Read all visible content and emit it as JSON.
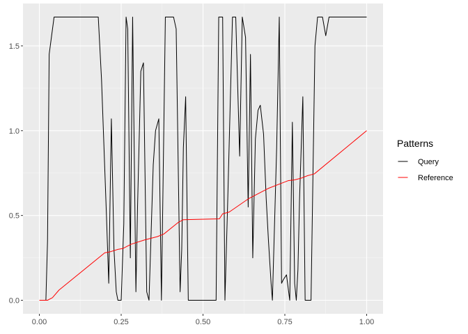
{
  "chart_data": {
    "type": "line",
    "title": "",
    "xlabel": "",
    "ylabel": "",
    "xlim": [
      -0.05,
      1.05
    ],
    "ylim": [
      -0.08,
      1.75
    ],
    "x_ticks": [
      0.0,
      0.25,
      0.5,
      0.75,
      1.0
    ],
    "x_tick_labels": [
      "0.00",
      "0.25",
      "0.50",
      "0.75",
      "1.00"
    ],
    "y_ticks": [
      0.0,
      0.5,
      1.0,
      1.5
    ],
    "y_tick_labels": [
      "0.0",
      "0.5",
      "1.0",
      "1.5"
    ],
    "grid": true,
    "background": "#ebebeb",
    "legend": {
      "title": "Patterns",
      "position": "right"
    },
    "series": [
      {
        "name": "Query",
        "color": "#000000",
        "points": [
          [
            0.0,
            0.0
          ],
          [
            0.02,
            0.0
          ],
          [
            0.025,
            0.35
          ],
          [
            0.03,
            1.45
          ],
          [
            0.045,
            1.67
          ],
          [
            0.18,
            1.67
          ],
          [
            0.19,
            1.3
          ],
          [
            0.205,
            0.5
          ],
          [
            0.212,
            0.1
          ],
          [
            0.22,
            1.07
          ],
          [
            0.228,
            0.3
          ],
          [
            0.235,
            0.05
          ],
          [
            0.24,
            0.0
          ],
          [
            0.25,
            0.0
          ],
          [
            0.258,
            0.45
          ],
          [
            0.265,
            1.67
          ],
          [
            0.27,
            1.6
          ],
          [
            0.278,
            0.25
          ],
          [
            0.285,
            1.67
          ],
          [
            0.295,
            0.05
          ],
          [
            0.3,
            0.55
          ],
          [
            0.31,
            1.35
          ],
          [
            0.318,
            1.4
          ],
          [
            0.328,
            0.05
          ],
          [
            0.335,
            0.0
          ],
          [
            0.348,
            0.8
          ],
          [
            0.355,
            1.0
          ],
          [
            0.365,
            1.07
          ],
          [
            0.373,
            0.0
          ],
          [
            0.385,
            1.67
          ],
          [
            0.41,
            1.67
          ],
          [
            0.418,
            1.6
          ],
          [
            0.43,
            0.05
          ],
          [
            0.435,
            0.3
          ],
          [
            0.44,
            0.9
          ],
          [
            0.447,
            1.2
          ],
          [
            0.455,
            0.0
          ],
          [
            0.54,
            0.0
          ],
          [
            0.548,
            1.67
          ],
          [
            0.56,
            1.67
          ],
          [
            0.567,
            0.0
          ],
          [
            0.575,
            0.55
          ],
          [
            0.59,
            1.67
          ],
          [
            0.6,
            1.67
          ],
          [
            0.612,
            0.85
          ],
          [
            0.62,
            1.67
          ],
          [
            0.63,
            1.55
          ],
          [
            0.638,
            0.55
          ],
          [
            0.645,
            1.45
          ],
          [
            0.652,
            0.25
          ],
          [
            0.66,
            0.95
          ],
          [
            0.668,
            1.12
          ],
          [
            0.675,
            1.15
          ],
          [
            0.685,
            0.98
          ],
          [
            0.693,
            0.6
          ],
          [
            0.7,
            0.35
          ],
          [
            0.708,
            0.1
          ],
          [
            0.712,
            0.0
          ],
          [
            0.72,
            0.55
          ],
          [
            0.725,
            0.9
          ],
          [
            0.733,
            1.67
          ],
          [
            0.74,
            0.1
          ],
          [
            0.745,
            0.12
          ],
          [
            0.755,
            0.15
          ],
          [
            0.765,
            0.0
          ],
          [
            0.773,
            1.05
          ],
          [
            0.78,
            0.1
          ],
          [
            0.785,
            0.0
          ],
          [
            0.79,
            0.18
          ],
          [
            0.795,
            0.6
          ],
          [
            0.805,
            1.2
          ],
          [
            0.812,
            0.0
          ],
          [
            0.83,
            0.0
          ],
          [
            0.842,
            1.5
          ],
          [
            0.85,
            1.67
          ],
          [
            0.865,
            1.67
          ],
          [
            0.875,
            1.56
          ],
          [
            0.885,
            1.67
          ],
          [
            1.0,
            1.67
          ]
        ]
      },
      {
        "name": "Reference",
        "color": "#ff0000",
        "points": [
          [
            0.0,
            0.0
          ],
          [
            0.025,
            0.0
          ],
          [
            0.04,
            0.015
          ],
          [
            0.06,
            0.06
          ],
          [
            0.2,
            0.28
          ],
          [
            0.215,
            0.285
          ],
          [
            0.24,
            0.3
          ],
          [
            0.255,
            0.305
          ],
          [
            0.28,
            0.33
          ],
          [
            0.32,
            0.355
          ],
          [
            0.36,
            0.375
          ],
          [
            0.38,
            0.39
          ],
          [
            0.425,
            0.46
          ],
          [
            0.44,
            0.475
          ],
          [
            0.55,
            0.48
          ],
          [
            0.56,
            0.51
          ],
          [
            0.58,
            0.52
          ],
          [
            0.61,
            0.56
          ],
          [
            0.64,
            0.6
          ],
          [
            0.7,
            0.66
          ],
          [
            0.74,
            0.69
          ],
          [
            0.76,
            0.705
          ],
          [
            0.78,
            0.71
          ],
          [
            0.8,
            0.72
          ],
          [
            0.82,
            0.735
          ],
          [
            0.84,
            0.745
          ],
          [
            1.0,
            1.0
          ]
        ]
      }
    ]
  }
}
